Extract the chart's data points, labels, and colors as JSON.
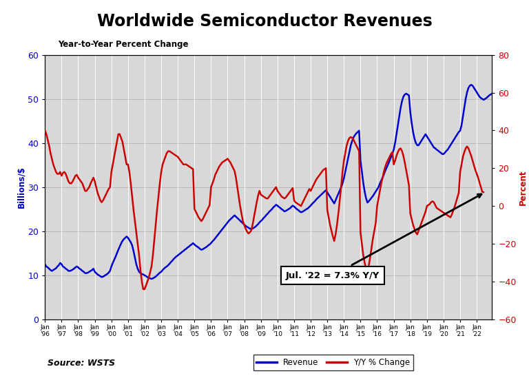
{
  "title": "Worldwide Semiconductor Revenues",
  "subtitle": "Year-to-Year Percent Change",
  "left_label": "Billions/$",
  "right_label": "Percent",
  "source": "Source: WSTS",
  "annotation": "Jul. '22 = 7.3% Y/Y",
  "x_tick_labels": [
    "Jan\n'96",
    "Jan\n'97",
    "Jan\n'98",
    "Jan\n'99",
    "Jan\n'00",
    "Jan\n'01",
    "Jan\n'02",
    "Jan\n'03",
    "Jan\n'04",
    "Jan\n'05",
    "Jan\n'06",
    "Jan\n'07",
    "Jan\n'08",
    "Jan\n'09",
    "Jan\n'10",
    "Jan\n'11",
    "Jan\n'12",
    "Jan\n'13",
    "Jan\n'14",
    "Jan\n'15",
    "Jan\n'16",
    "Jan\n'17",
    "Jan\n'18",
    "Jan\n'19",
    "Jan\n'20",
    "Jan\n'21",
    "Jan\n'22"
  ],
  "revenue_color": "#0000cc",
  "yoy_color": "#cc0000",
  "background_color": "#d8d8d8",
  "ylim_left": [
    0,
    60
  ],
  "ylim_right": [
    -60,
    80
  ],
  "revenue_monthly": [
    12.5,
    12.0,
    11.8,
    11.5,
    11.2,
    11.0,
    11.2,
    11.4,
    11.6,
    12.0,
    12.3,
    12.8,
    12.5,
    12.0,
    11.8,
    11.5,
    11.3,
    11.0,
    11.0,
    11.1,
    11.3,
    11.5,
    11.8,
    12.0,
    11.8,
    11.5,
    11.3,
    11.0,
    10.8,
    10.5,
    10.5,
    10.6,
    10.8,
    11.0,
    11.2,
    11.5,
    10.8,
    10.5,
    10.2,
    10.0,
    9.8,
    9.6,
    9.7,
    9.9,
    10.1,
    10.3,
    10.6,
    11.0,
    12.0,
    12.8,
    13.5,
    14.2,
    15.0,
    15.8,
    16.5,
    17.2,
    17.8,
    18.2,
    18.5,
    18.8,
    18.5,
    18.0,
    17.5,
    16.8,
    15.5,
    14.0,
    12.5,
    11.5,
    10.8,
    10.5,
    10.3,
    10.2,
    10.0,
    9.8,
    9.6,
    9.4,
    9.3,
    9.2,
    9.3,
    9.5,
    9.7,
    10.0,
    10.3,
    10.6,
    10.8,
    11.2,
    11.5,
    11.8,
    12.0,
    12.3,
    12.6,
    13.0,
    13.3,
    13.7,
    14.0,
    14.3,
    14.5,
    14.8,
    15.0,
    15.3,
    15.5,
    15.8,
    16.0,
    16.3,
    16.5,
    16.8,
    17.0,
    17.3,
    17.0,
    16.7,
    16.5,
    16.3,
    16.0,
    15.8,
    15.9,
    16.1,
    16.3,
    16.5,
    16.8,
    17.0,
    17.3,
    17.7,
    18.0,
    18.4,
    18.8,
    19.2,
    19.6,
    20.0,
    20.4,
    20.8,
    21.2,
    21.6,
    22.0,
    22.4,
    22.7,
    23.0,
    23.3,
    23.6,
    23.3,
    23.0,
    22.7,
    22.4,
    22.1,
    21.8,
    21.5,
    21.2,
    21.0,
    20.8,
    20.6,
    20.5,
    20.6,
    20.8,
    21.0,
    21.3,
    21.6,
    22.0,
    22.3,
    22.6,
    23.0,
    23.3,
    23.7,
    24.0,
    24.4,
    24.7,
    25.0,
    25.4,
    25.7,
    26.0,
    25.8,
    25.5,
    25.3,
    25.0,
    24.8,
    24.5,
    24.6,
    24.8,
    25.0,
    25.2,
    25.5,
    25.8,
    25.6,
    25.3,
    25.0,
    24.8,
    24.5,
    24.3,
    24.4,
    24.6,
    24.8,
    25.0,
    25.2,
    25.5,
    25.8,
    26.2,
    26.5,
    26.8,
    27.2,
    27.5,
    27.8,
    28.1,
    28.4,
    28.7,
    29.0,
    29.3,
    28.8,
    28.3,
    27.8,
    27.3,
    26.8,
    26.3,
    27.0,
    27.8,
    28.5,
    29.2,
    30.0,
    30.8,
    32.0,
    33.5,
    35.0,
    36.5,
    38.0,
    39.5,
    40.5,
    41.3,
    41.8,
    42.2,
    42.5,
    42.8,
    36.0,
    33.5,
    31.0,
    29.0,
    27.5,
    26.5,
    26.8,
    27.2,
    27.6,
    28.0,
    28.5,
    29.0,
    29.5,
    30.0,
    30.8,
    31.5,
    32.2,
    33.0,
    33.8,
    34.5,
    35.2,
    36.0,
    36.8,
    37.5,
    38.5,
    40.0,
    42.0,
    44.0,
    46.0,
    48.0,
    49.5,
    50.5,
    51.0,
    51.2,
    51.0,
    50.8,
    47.0,
    44.5,
    42.5,
    41.0,
    40.0,
    39.5,
    39.5,
    40.0,
    40.5,
    41.0,
    41.5,
    42.0,
    41.5,
    41.0,
    40.5,
    40.0,
    39.5,
    39.0,
    38.8,
    38.5,
    38.3,
    38.0,
    37.8,
    37.5,
    37.5,
    37.8,
    38.2,
    38.5,
    39.0,
    39.5,
    40.0,
    40.5,
    41.0,
    41.5,
    42.0,
    42.5,
    42.8,
    44.0,
    46.0,
    48.0,
    50.0,
    51.5,
    52.5,
    53.0,
    53.2,
    53.0,
    52.5,
    52.0,
    51.5,
    51.0,
    50.5,
    50.2,
    50.0,
    49.8,
    50.0,
    50.2,
    50.5,
    50.8,
    51.0,
    51.2
  ],
  "yoy_monthly": [
    40.0,
    38.0,
    35.0,
    32.0,
    28.0,
    25.0,
    22.0,
    20.0,
    18.0,
    17.0,
    17.0,
    18.0,
    16.0,
    17.5,
    18.0,
    17.0,
    15.0,
    13.0,
    12.0,
    12.0,
    13.0,
    14.5,
    16.0,
    16.5,
    15.0,
    14.0,
    13.0,
    12.0,
    10.0,
    8.0,
    8.0,
    9.0,
    10.0,
    12.0,
    13.5,
    15.0,
    13.0,
    10.0,
    7.0,
    5.0,
    3.0,
    2.0,
    3.0,
    4.5,
    6.0,
    7.5,
    9.0,
    10.0,
    18.0,
    22.0,
    26.0,
    30.0,
    34.0,
    38.0,
    38.0,
    36.0,
    34.0,
    30.0,
    26.0,
    22.0,
    22.0,
    18.0,
    12.0,
    5.0,
    -2.0,
    -8.0,
    -14.0,
    -20.0,
    -26.0,
    -34.0,
    -40.0,
    -44.0,
    -44.0,
    -42.0,
    -40.0,
    -38.0,
    -35.0,
    -32.0,
    -26.0,
    -18.0,
    -10.0,
    -2.0,
    5.0,
    12.0,
    18.0,
    22.0,
    24.0,
    26.0,
    28.0,
    29.0,
    29.0,
    28.5,
    28.0,
    27.5,
    27.0,
    26.5,
    26.0,
    25.0,
    24.0,
    23.0,
    22.0,
    22.0,
    22.0,
    21.5,
    21.0,
    20.5,
    20.0,
    19.5,
    -1.5,
    -3.0,
    -4.5,
    -6.0,
    -7.0,
    -8.0,
    -7.0,
    -5.5,
    -4.0,
    -2.5,
    -1.0,
    0.5,
    10.0,
    12.0,
    14.0,
    16.5,
    18.0,
    19.5,
    21.0,
    22.0,
    23.0,
    23.5,
    24.0,
    24.5,
    25.0,
    24.0,
    23.0,
    21.5,
    20.0,
    18.5,
    15.0,
    10.0,
    5.0,
    0.0,
    -4.0,
    -8.0,
    -10.0,
    -12.0,
    -13.5,
    -14.5,
    -14.0,
    -13.0,
    -10.0,
    -6.0,
    -2.0,
    2.0,
    5.5,
    8.0,
    6.0,
    5.5,
    5.0,
    4.5,
    4.0,
    4.0,
    5.0,
    6.0,
    7.0,
    8.0,
    9.0,
    10.0,
    8.0,
    7.0,
    6.0,
    5.0,
    4.5,
    4.0,
    4.5,
    5.5,
    6.5,
    7.5,
    8.5,
    9.5,
    3.0,
    2.0,
    1.5,
    1.0,
    0.5,
    0.0,
    1.5,
    3.0,
    4.5,
    6.0,
    7.5,
    9.0,
    8.0,
    9.5,
    11.0,
    12.5,
    14.0,
    15.0,
    16.0,
    17.0,
    18.0,
    19.0,
    19.5,
    20.0,
    -2.0,
    -6.0,
    -10.0,
    -13.0,
    -16.0,
    -18.5,
    -15.0,
    -10.0,
    -4.0,
    3.0,
    10.0,
    18.0,
    24.0,
    28.0,
    32.0,
    34.5,
    36.0,
    36.5,
    36.0,
    35.0,
    33.5,
    32.0,
    30.5,
    29.0,
    -14.0,
    -20.0,
    -26.0,
    -30.0,
    -33.0,
    -34.0,
    -31.5,
    -27.0,
    -22.0,
    -17.0,
    -13.0,
    -9.0,
    0.0,
    4.0,
    8.0,
    12.0,
    15.0,
    18.5,
    21.0,
    23.0,
    24.5,
    26.0,
    27.5,
    28.5,
    22.0,
    24.0,
    26.5,
    28.5,
    30.0,
    30.5,
    29.0,
    26.5,
    23.0,
    19.0,
    15.0,
    11.0,
    -4.0,
    -7.0,
    -10.0,
    -12.0,
    -14.0,
    -15.0,
    -13.0,
    -11.0,
    -9.0,
    -7.0,
    -5.0,
    -3.0,
    0.0,
    0.5,
    1.0,
    2.0,
    2.5,
    2.0,
    0.5,
    -1.0,
    -1.5,
    -2.0,
    -2.5,
    -3.0,
    -3.5,
    -4.0,
    -4.5,
    -5.0,
    -5.5,
    -6.0,
    -4.5,
    -2.5,
    -0.5,
    2.0,
    4.5,
    7.0,
    18.0,
    22.0,
    26.0,
    28.5,
    30.5,
    31.5,
    30.5,
    28.5,
    26.5,
    24.0,
    21.5,
    19.0,
    17.0,
    15.0,
    12.5,
    10.0,
    7.5,
    7.3,
    null,
    null,
    null,
    null,
    null,
    null
  ]
}
